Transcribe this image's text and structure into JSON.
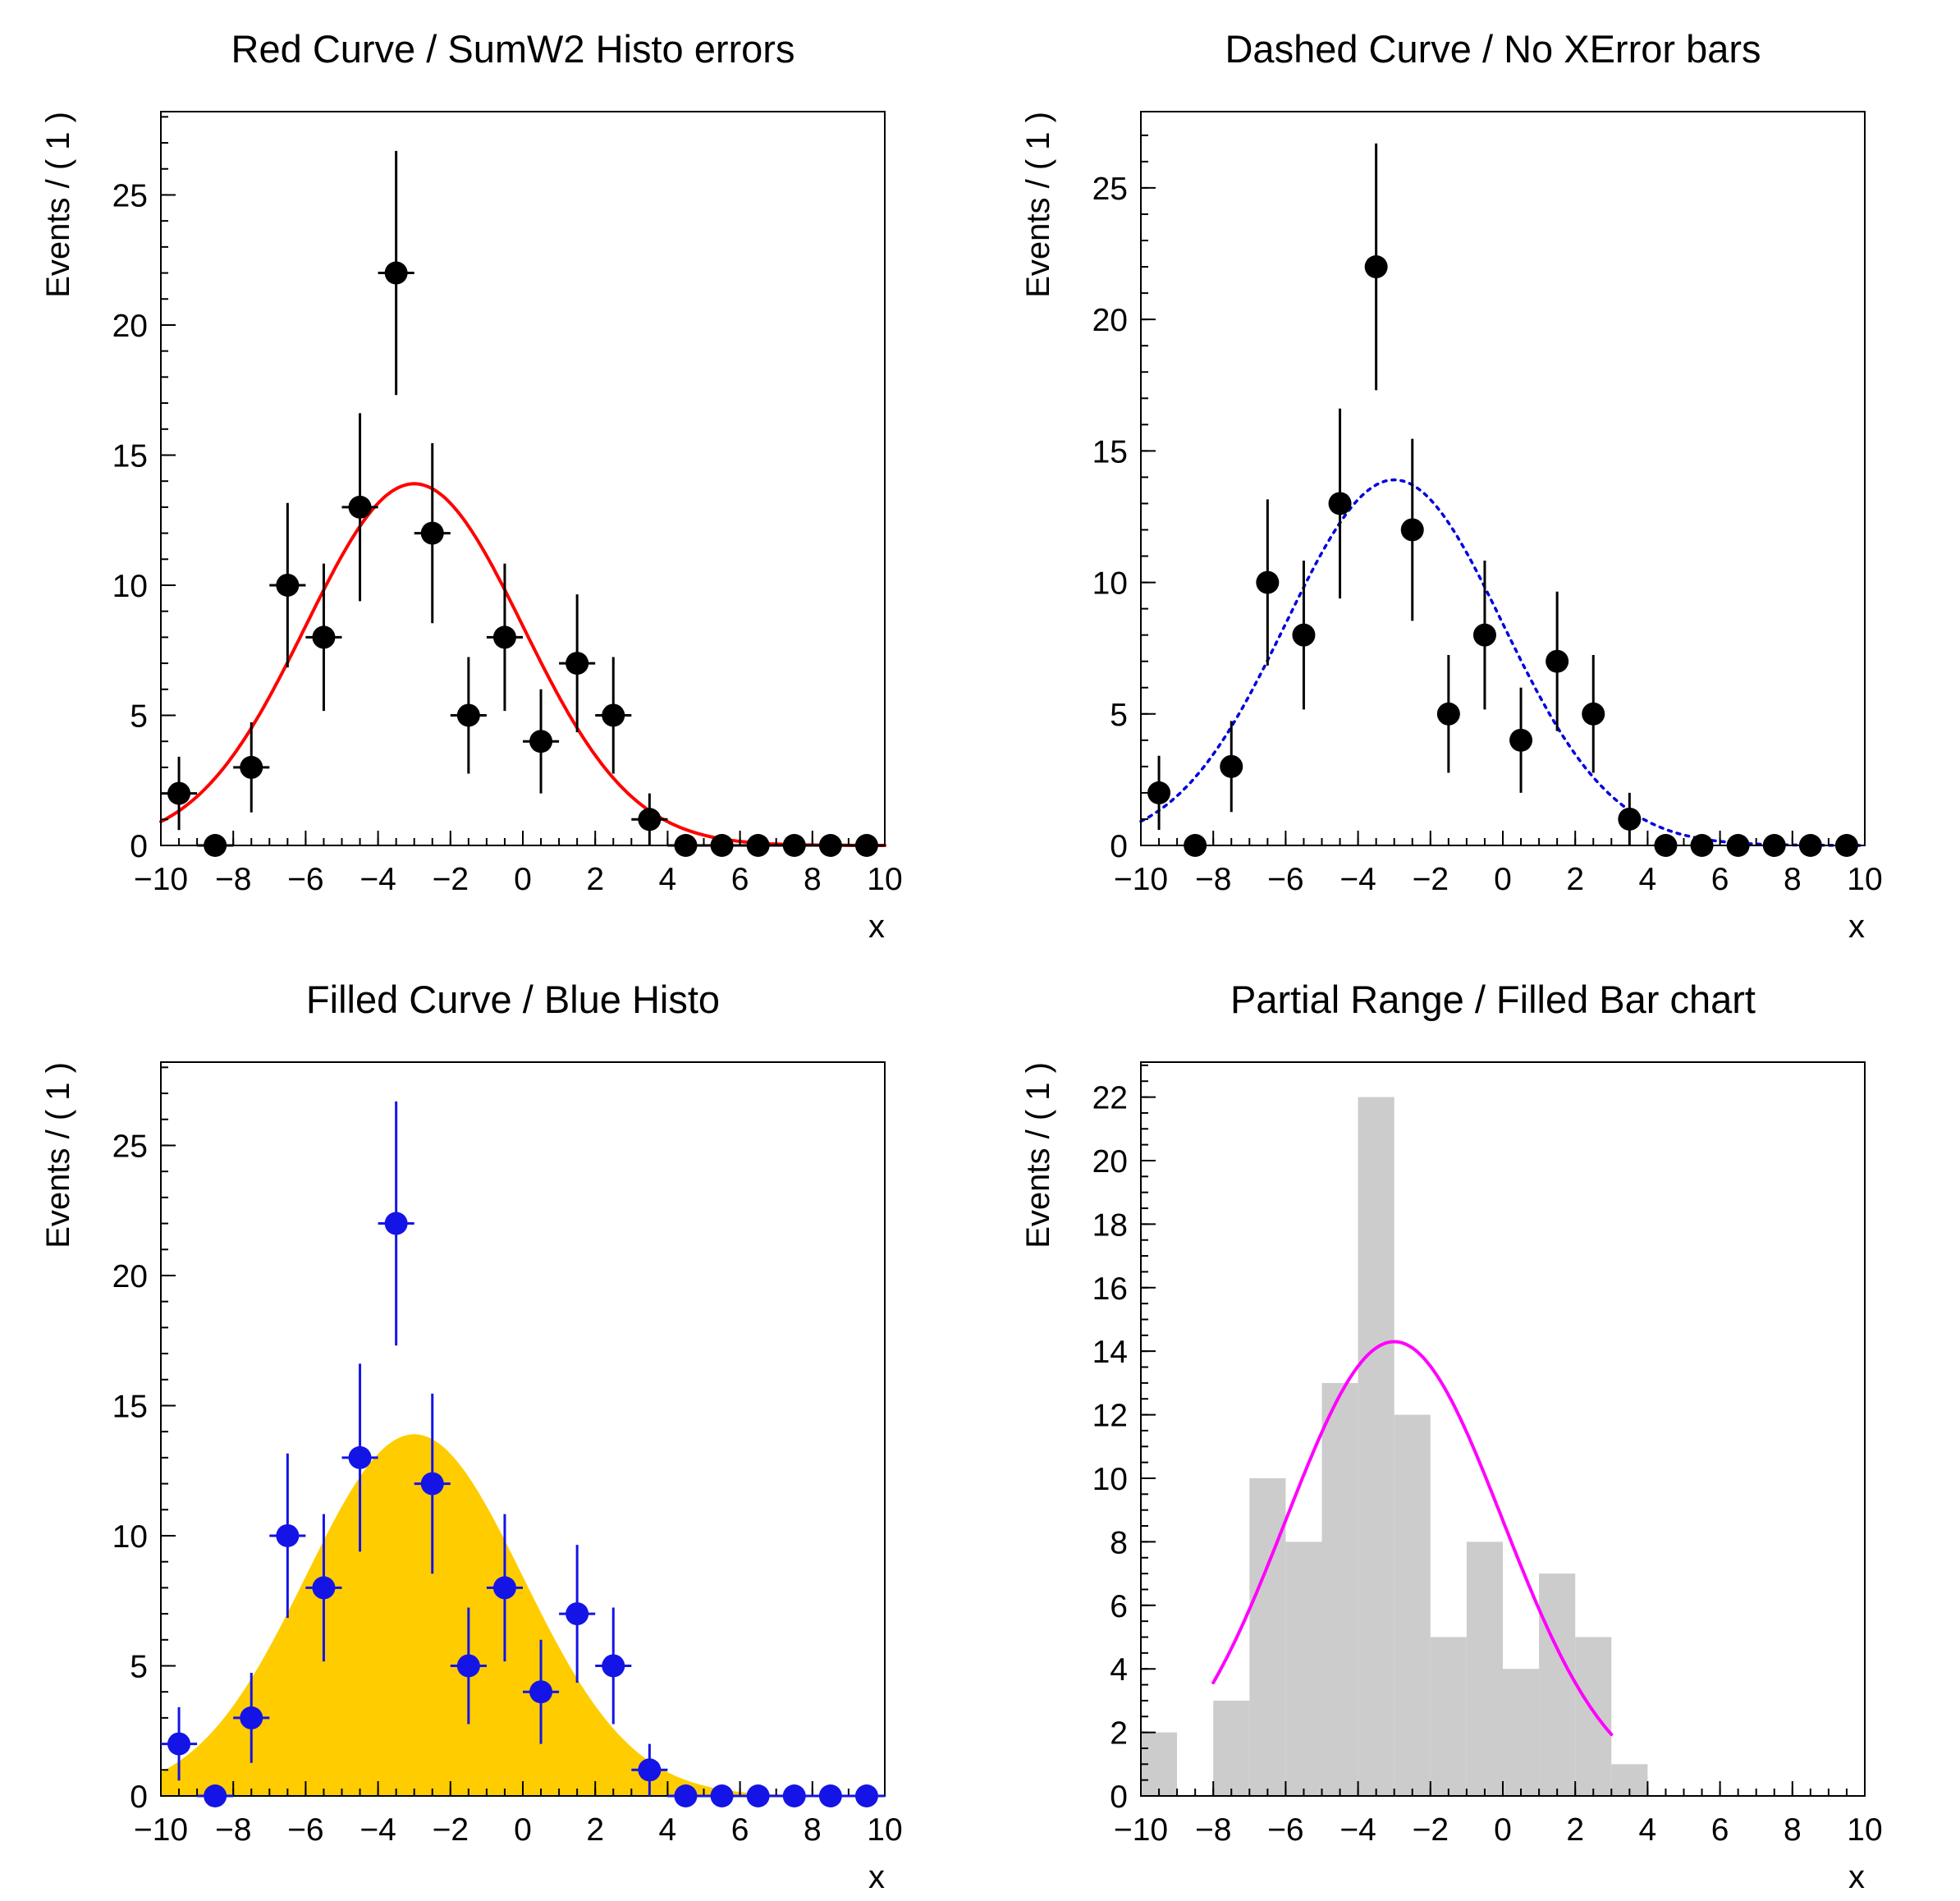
{
  "figure": {
    "rows": 2,
    "columns": 2,
    "background": "#ffffff"
  },
  "chart_data": [
    {
      "type": "scatter",
      "title": "Red Curve / SumW2 Histo errors",
      "xlabel": "x",
      "ylabel": "Events / ( 1 )",
      "xlim": [
        -10,
        10
      ],
      "ylim": [
        0,
        28.2
      ],
      "grid": false,
      "legend": "none",
      "x_ticks": [
        -10,
        -8,
        -6,
        -4,
        -2,
        0,
        2,
        4,
        6,
        8,
        10
      ],
      "x_tick_labels": [
        "−10",
        "−8",
        "−6",
        "−4",
        "−2",
        "0",
        "2",
        "4",
        "6",
        "8",
        "10"
      ],
      "y_ticks": [
        0,
        5,
        10,
        15,
        20,
        25
      ],
      "y_tick_labels": [
        "0",
        "5",
        "10",
        "15",
        "20",
        "25"
      ],
      "x_minor_step": 0.5,
      "y_minor_step": 1,
      "points": {
        "x": [
          -9.5,
          -8.5,
          -7.5,
          -6.5,
          -5.5,
          -4.5,
          -3.5,
          -2.5,
          -1.5,
          -0.5,
          0.5,
          1.5,
          2.5,
          3.5,
          4.5,
          5.5,
          6.5,
          7.5,
          8.5,
          9.5
        ],
        "y": [
          2,
          0,
          3,
          10,
          8,
          13,
          22,
          12,
          5,
          8,
          4,
          7,
          5,
          1,
          0,
          0,
          0,
          0,
          0,
          0
        ],
        "yerr": [
          1.41,
          0,
          1.73,
          3.16,
          2.83,
          3.61,
          4.69,
          3.46,
          2.24,
          2.83,
          2.0,
          2.65,
          2.24,
          1.0,
          0,
          0,
          0,
          0,
          0,
          0
        ],
        "xerr": 0.5,
        "color": "#000000",
        "marker_radius": 14
      },
      "curves": [
        {
          "shape": "gaussian",
          "mean": -3,
          "sigma": 3,
          "peak": 13.9,
          "range": [
            -10,
            10
          ],
          "color": "#ff0000",
          "width": 4,
          "dash": "",
          "fill": ""
        }
      ],
      "bars": null
    },
    {
      "type": "scatter",
      "title": "Dashed Curve / No XError bars",
      "xlabel": "x",
      "ylabel": "Events / ( 1 )",
      "xlim": [
        -10,
        10
      ],
      "ylim": [
        0,
        27.9
      ],
      "grid": false,
      "legend": "none",
      "x_ticks": [
        -10,
        -8,
        -6,
        -4,
        -2,
        0,
        2,
        4,
        6,
        8,
        10
      ],
      "x_tick_labels": [
        "−10",
        "−8",
        "−6",
        "−4",
        "−2",
        "0",
        "2",
        "4",
        "6",
        "8",
        "10"
      ],
      "y_ticks": [
        0,
        5,
        10,
        15,
        20,
        25
      ],
      "y_tick_labels": [
        "0",
        "5",
        "10",
        "15",
        "20",
        "25"
      ],
      "x_minor_step": 0.5,
      "y_minor_step": 1,
      "points": {
        "x": [
          -9.5,
          -8.5,
          -7.5,
          -6.5,
          -5.5,
          -4.5,
          -3.5,
          -2.5,
          -1.5,
          -0.5,
          0.5,
          1.5,
          2.5,
          3.5,
          4.5,
          5.5,
          6.5,
          7.5,
          8.5,
          9.5
        ],
        "y": [
          2,
          0,
          3,
          10,
          8,
          13,
          22,
          12,
          5,
          8,
          4,
          7,
          5,
          1,
          0,
          0,
          0,
          0,
          0,
          0
        ],
        "yerr": [
          1.41,
          0,
          1.73,
          3.16,
          2.83,
          3.61,
          4.69,
          3.46,
          2.24,
          2.83,
          2.0,
          2.65,
          2.24,
          1.0,
          0,
          0,
          0,
          0,
          0,
          0
        ],
        "xerr": 0,
        "color": "#000000",
        "marker_radius": 14
      },
      "curves": [
        {
          "shape": "gaussian",
          "mean": -3,
          "sigma": 3,
          "peak": 13.9,
          "range": [
            -10,
            10
          ],
          "color": "#0000dd",
          "width": 3.5,
          "dash": "4 7",
          "fill": ""
        }
      ],
      "bars": null
    },
    {
      "type": "scatter",
      "title": "Filled Curve / Blue Histo",
      "xlabel": "x",
      "ylabel": "Events / ( 1 )",
      "xlim": [
        -10,
        10
      ],
      "ylim": [
        0,
        28.2
      ],
      "grid": false,
      "legend": "none",
      "x_ticks": [
        -10,
        -8,
        -6,
        -4,
        -2,
        0,
        2,
        4,
        6,
        8,
        10
      ],
      "x_tick_labels": [
        "−10",
        "−8",
        "−6",
        "−4",
        "−2",
        "0",
        "2",
        "4",
        "6",
        "8",
        "10"
      ],
      "y_ticks": [
        0,
        5,
        10,
        15,
        20,
        25
      ],
      "y_tick_labels": [
        "0",
        "5",
        "10",
        "15",
        "20",
        "25"
      ],
      "x_minor_step": 0.5,
      "y_minor_step": 1,
      "points": {
        "x": [
          -9.5,
          -8.5,
          -7.5,
          -6.5,
          -5.5,
          -4.5,
          -3.5,
          -2.5,
          -1.5,
          -0.5,
          0.5,
          1.5,
          2.5,
          3.5,
          4.5,
          5.5,
          6.5,
          7.5,
          8.5,
          9.5
        ],
        "y": [
          2,
          0,
          3,
          10,
          8,
          13,
          22,
          12,
          5,
          8,
          4,
          7,
          5,
          1,
          0,
          0,
          0,
          0,
          0,
          0
        ],
        "yerr": [
          1.41,
          0,
          1.73,
          3.16,
          2.83,
          3.61,
          4.69,
          3.46,
          2.24,
          2.83,
          2.0,
          2.65,
          2.24,
          1.0,
          0,
          0,
          0,
          0,
          0,
          0
        ],
        "xerr": 0.5,
        "color": "#1414e6",
        "marker_radius": 14
      },
      "curves": [
        {
          "shape": "gaussian",
          "mean": -3,
          "sigma": 3,
          "peak": 13.9,
          "range": [
            -10,
            10
          ],
          "color": "#ffcc00",
          "width": 0,
          "dash": "",
          "fill": "#ffcc00"
        }
      ],
      "bars": null
    },
    {
      "type": "bar",
      "title": "Partial Range / Filled Bar chart",
      "xlabel": "x",
      "ylabel": "Events / ( 1 )",
      "xlim": [
        -10,
        10
      ],
      "ylim": [
        0,
        23.1
      ],
      "grid": false,
      "legend": "none",
      "x_ticks": [
        -10,
        -8,
        -6,
        -4,
        -2,
        0,
        2,
        4,
        6,
        8,
        10
      ],
      "x_tick_labels": [
        "−10",
        "−8",
        "−6",
        "−4",
        "−2",
        "0",
        "2",
        "4",
        "6",
        "8",
        "10"
      ],
      "y_ticks": [
        0,
        2,
        4,
        6,
        8,
        10,
        12,
        14,
        16,
        18,
        20,
        22
      ],
      "y_tick_labels": [
        "0",
        "2",
        "4",
        "6",
        "8",
        "10",
        "12",
        "14",
        "16",
        "18",
        "20",
        "22"
      ],
      "x_minor_step": 0.5,
      "y_minor_step": 0.5,
      "points": null,
      "curves": [
        {
          "shape": "gaussian",
          "mean": -3,
          "sigma": 3,
          "peak": 14.3,
          "range": [
            -8,
            3
          ],
          "color": "#ff00ff",
          "width": 4,
          "dash": "",
          "fill": ""
        }
      ],
      "bars": {
        "x": [
          -9.5,
          -8.5,
          -7.5,
          -6.5,
          -5.5,
          -4.5,
          -3.5,
          -2.5,
          -1.5,
          -0.5,
          0.5,
          1.5,
          2.5,
          3.5,
          4.5,
          5.5,
          6.5,
          7.5,
          8.5,
          9.5
        ],
        "y": [
          2,
          0,
          3,
          10,
          8,
          13,
          22,
          12,
          5,
          8,
          4,
          7,
          5,
          1,
          0,
          0,
          0,
          0,
          0,
          0
        ],
        "bin_width": 1,
        "color": "#cccccc"
      }
    }
  ]
}
